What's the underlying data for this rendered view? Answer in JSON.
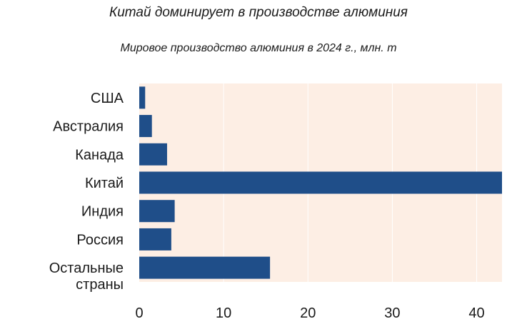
{
  "chart_data": {
    "type": "bar",
    "orientation": "horizontal",
    "title": "Китай доминирует в производстве алюминия",
    "subtitle": "Мировое производство алюминия в 2024 г., млн. т",
    "categories": [
      "США",
      "Австралия",
      "Канада",
      "Китай",
      "Индия",
      "Россия",
      [
        "Остальные",
        "страны"
      ]
    ],
    "values": [
      0.7,
      1.5,
      3.3,
      43,
      4.2,
      3.8,
      15.5
    ],
    "xlim": [
      0,
      43
    ],
    "xticks": [
      0,
      10,
      20,
      30,
      40
    ],
    "grid": true,
    "colors": {
      "bar": "#1f4e89",
      "plot_background": "#fdeee4",
      "grid": "#ffffff"
    }
  }
}
